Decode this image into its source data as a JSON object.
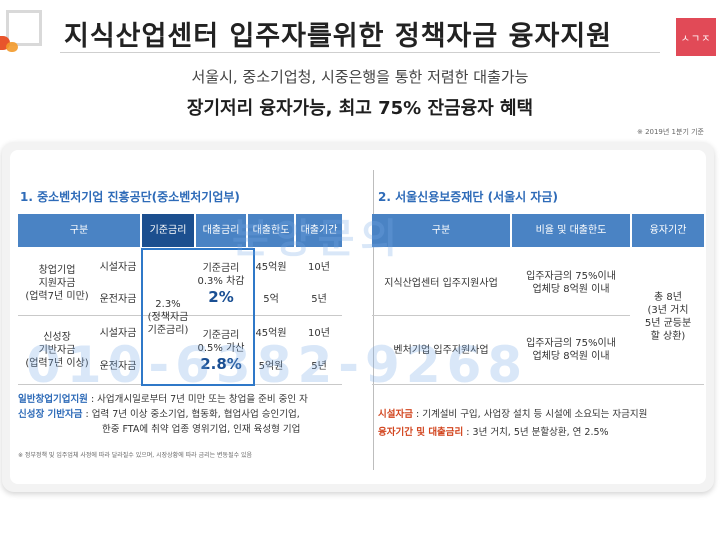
{
  "header": {
    "title": "지식산업센터 입주자를위한 정책자금 융자지원",
    "brand_label": "ㅅㄱㅈ",
    "subtitle": "서울시, 중소기업청, 시중은행을 통한 저렴한 대출가능",
    "headline": "장기저리 융자가능, 최고 75% 잔금융자 혜택",
    "basis_note": "※ 2019년 1분기 기준"
  },
  "left": {
    "title": "1. 중소벤처기업 진흥공단(중소벤처기업부)",
    "headers": [
      "구분",
      "기준금리",
      "대출금리",
      "대출한도",
      "대출기간"
    ],
    "group1": {
      "label": "창업기업\n지원자금\n(업력7년 미만)",
      "row1_type": "시설자금",
      "row2_type": "운전자금",
      "rate_main": "기준금리\n0.3% 차감",
      "rate_value": "2%",
      "limit1": "45억원",
      "limit2": "5억",
      "period1": "10년",
      "period2": "5년"
    },
    "group2": {
      "label": "신성장\n기반자금\n(업력7년 이상)",
      "row1_type": "시설자금",
      "row2_type": "운전자금",
      "rate_main": "기준금리\n0.5% 가산",
      "rate_value": "2.8%",
      "limit1": "45억원",
      "limit2": "5억원",
      "period1": "10년",
      "period2": "5년"
    },
    "base_rate": "2.3%\n(정책자금\n기준금리)",
    "legend1_label": "일반창업기업지원",
    "legend1_text": " : 사업개시일로부터 7년 미만 또는 창업을 준비 중인 자",
    "legend2_label": "신성장 기반자금",
    "legend2_text": " : 업력 7년 이상 중소기업, 협동화, 협업사업 승인기업,",
    "legend2_text2": "한중 FTA에 취약 업종 영위기업, 인재 육성형 기업",
    "footnote": "※ 정부정책 및 입주업체 사정에 따라 달라질수 있으며, 시장상황에 따라 금리는 변동될수 있음"
  },
  "right": {
    "title": "2. 서울신용보증재단 (서울시 자금)",
    "headers": [
      "구분",
      "비율 및 대출한도",
      "융자기간"
    ],
    "row1": {
      "type": "지식산업센터 입주지원사업",
      "ratio": "입주자금의 75%이내\n업체당 8억원 이내"
    },
    "row2": {
      "type": "벤처기업 입주지원사업",
      "ratio": "입주자금의 75%이내\n업체당 8억원 이내"
    },
    "period": "총 8년\n(3년 거치\n5년 균등분\n할 상환)",
    "legend1_label": "시설자금",
    "legend1_text": " : 기계설비 구입, 사업장 설치 등 시설에 소요되는 자금지원",
    "legend2_label": "융자기간 및 대출금리",
    "legend2_text": " : 3년 거치, 5년 분할상환, 연 2.5%"
  },
  "watermark": {
    "line1": "분양문의",
    "line2": "010-6382-9268"
  }
}
